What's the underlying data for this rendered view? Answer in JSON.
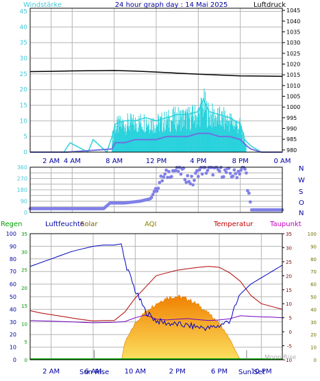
{
  "header": {
    "left_label": "Windstärke",
    "title": "24 hour graph day : 14 Mai 2025",
    "right_label": "Luftdruck"
  },
  "panel2": {
    "right_labels": [
      "N",
      "W",
      "S",
      "O",
      "N"
    ]
  },
  "panel3": {
    "legend": [
      "Regen",
      "Luftfeuchte",
      "Solar",
      "AQI",
      "Temperatur",
      "Taupunkt"
    ],
    "sun_rise": "Sun Rise",
    "sun_set": "Sun Set",
    "moon_rise": "Moon Rise"
  },
  "colors": {
    "background": "#ffffff",
    "plot_bg": "#ffffff",
    "grid": "#b4b4b4",
    "frame": "#000000",
    "label_blue": "#0000a0",
    "wind_label": "#44c8d8",
    "pressure": "#000000",
    "wind_gust": "#28d2dc",
    "wind_avg": "#6f70e0",
    "direction": "#8080e8",
    "rain": "#00a000",
    "humidity": "#0000c0",
    "solar": "#f5a623",
    "solar_label": "#7a6000",
    "aqi_label": "#8a8000",
    "temperature": "#b00000",
    "temp_label": "#c00000",
    "dewpoint": "#7000c0",
    "dewpoint_label": "#c000c0",
    "rain_axis": "#009000",
    "temp_axis": "#7a0000",
    "aqi_axis": "#707000"
  },
  "chart_data": [
    {
      "type": "line",
      "title": "24 hour graph day : 14 Mai 2025",
      "x_ticks": [
        "2 AM",
        "4 AM",
        "8 AM",
        "12 PM",
        "4 PM",
        "8 PM",
        "0 AM"
      ],
      "x_range_hours": [
        0,
        24
      ],
      "ylabel_left": "Windstärke",
      "ylim_left": [
        0,
        46
      ],
      "yticks_left": [
        0,
        5,
        10,
        15,
        20,
        25,
        30,
        35,
        40,
        45
      ],
      "ylabel_right": "Luftdruck",
      "ylim_right": [
        979,
        1046
      ],
      "yticks_right": [
        980,
        985,
        990,
        995,
        1000,
        1005,
        1010,
        1015,
        1020,
        1025,
        1030,
        1035,
        1040,
        1045
      ],
      "series": [
        {
          "name": "Luftdruck",
          "axis": "right",
          "x": [
            0,
            2,
            4,
            6,
            8,
            10,
            12,
            14,
            16,
            18,
            20,
            22,
            24
          ],
          "y": [
            1016.5,
            1016.6,
            1016.8,
            1016.9,
            1017.0,
            1016.7,
            1016.3,
            1015.8,
            1015.3,
            1014.9,
            1014.5,
            1014.4,
            1014.3
          ]
        },
        {
          "name": "Windböen",
          "axis": "left",
          "x": [
            0,
            3.2,
            3.8,
            5.5,
            6.0,
            7.3,
            7.8,
            8.1,
            9,
            10,
            11,
            12,
            13,
            14,
            15,
            16,
            16.5,
            17,
            18,
            19,
            20,
            20.4,
            21,
            22,
            24
          ],
          "y": [
            0,
            0,
            3,
            0,
            4,
            0,
            5,
            9,
            10,
            10,
            11,
            10,
            11,
            12,
            12,
            13,
            17,
            13,
            12,
            11,
            9,
            4,
            2,
            0,
            0
          ]
        },
        {
          "name": "Windstärke",
          "axis": "left",
          "x": [
            0,
            3.5,
            7.8,
            8.1,
            9,
            10,
            11,
            12,
            13,
            14,
            15,
            16,
            17,
            18,
            19,
            20,
            20.6,
            21,
            22,
            24
          ],
          "y": [
            0,
            0,
            1,
            3,
            3,
            4,
            4,
            4,
            5,
            5,
            5,
            6,
            6,
            5,
            5,
            4,
            2,
            1,
            0,
            0
          ]
        }
      ]
    },
    {
      "type": "scatter",
      "x_ticks": [
        "2 AM",
        "4 AM",
        "8 AM",
        "12 PM",
        "4 PM",
        "8 PM",
        "0 AM"
      ],
      "x_range_hours": [
        0,
        24
      ],
      "ylim": [
        0,
        360
      ],
      "yticks": [
        0,
        45,
        90,
        135,
        180,
        225,
        270,
        315,
        360
      ],
      "ytick_labels": [
        "0",
        "",
        "90",
        "",
        "180",
        "",
        "270",
        "",
        "360"
      ],
      "series": [
        {
          "name": "Windrichtung",
          "x": [
            0,
            1,
            2,
            3,
            4,
            5,
            6,
            7,
            7.6,
            8,
            9,
            9.5,
            10,
            10.5,
            11,
            11.5,
            12,
            12.5,
            13,
            13.5,
            14,
            14.5,
            15,
            15.5,
            16,
            16.5,
            17,
            17.5,
            18,
            18.5,
            19,
            19.5,
            20,
            20.5,
            21,
            22,
            23,
            24
          ],
          "y": [
            30,
            30,
            30,
            30,
            30,
            30,
            30,
            30,
            75,
            75,
            75,
            80,
            85,
            90,
            100,
            110,
            200,
            260,
            300,
            330,
            340,
            320,
            270,
            240,
            330,
            340,
            340,
            335,
            330,
            320,
            310,
            300,
            340,
            345,
            20,
            20,
            20,
            20
          ]
        }
      ]
    },
    {
      "type": "line",
      "x_ticks": [
        "2 AM",
        "6 AM",
        "10 AM",
        "2 PM",
        "6 PM",
        "10 PM"
      ],
      "x_range_hours": [
        0,
        24
      ],
      "ylabel_left": "Regen",
      "ylim_left": [
        0,
        100
      ],
      "yticks_left": [
        0,
        10,
        20,
        30,
        40,
        50,
        60,
        70,
        80,
        90,
        100
      ],
      "ylabel_right": "Temperatur",
      "ylim_right": [
        -10,
        35
      ],
      "yticks_right": [
        -10,
        -5,
        0,
        5,
        10,
        15,
        20,
        25,
        30,
        35
      ],
      "yticks_rain": [
        0,
        5,
        10,
        15,
        20,
        25,
        30,
        35
      ],
      "yticks_aqi": [
        0,
        10,
        20,
        30,
        40,
        50,
        60,
        70,
        80,
        90,
        100
      ],
      "series": [
        {
          "name": "Luftfeuchte",
          "x": [
            0,
            1,
            2,
            3,
            4,
            5,
            6,
            7,
            8,
            8.7,
            9,
            10,
            11,
            12,
            13,
            14,
            15,
            16,
            17,
            18,
            19,
            20,
            21,
            22,
            23,
            24
          ],
          "y": [
            74,
            77,
            80,
            83,
            86,
            88,
            90,
            91,
            91,
            92,
            78,
            55,
            38,
            31,
            29,
            28,
            27,
            26,
            25,
            27,
            31,
            52,
            60,
            65,
            70,
            75
          ]
        },
        {
          "name": "Temperatur",
          "x": [
            0,
            1,
            2,
            3,
            4,
            5,
            6,
            7,
            8,
            9,
            10,
            11,
            12,
            13,
            14,
            15,
            16,
            17,
            18,
            19,
            20,
            21,
            22,
            23,
            24
          ],
          "y": [
            7.5,
            6.7,
            6.1,
            5.5,
            4.9,
            4.3,
            3.9,
            4.0,
            4.0,
            7.0,
            12.0,
            16.0,
            20.0,
            21.0,
            22.0,
            22.5,
            23.0,
            23.3,
            23.0,
            21.0,
            18.0,
            13.0,
            10.0,
            9.0,
            8.0
          ]
        },
        {
          "name": "Taupunkt",
          "x": [
            0,
            2,
            4,
            6,
            8,
            9,
            10,
            11,
            12,
            13,
            14,
            15,
            16,
            17,
            18,
            19,
            20,
            21,
            22,
            23,
            24
          ],
          "y": [
            4.0,
            3.8,
            3.5,
            3.2,
            3.4,
            3.6,
            5.0,
            6.0,
            4.5,
            4.2,
            4.5,
            4.7,
            4.3,
            4.0,
            4.2,
            4.6,
            5.7,
            5.5,
            5.3,
            5.2,
            5.0
          ]
        },
        {
          "name": "Solar",
          "x": [
            8.7,
            9,
            10,
            11,
            12,
            13,
            14,
            15,
            16,
            17,
            18,
            19,
            19.5,
            20
          ],
          "y": [
            0,
            14,
            30,
            40,
            46,
            51,
            52,
            50,
            45,
            38,
            30,
            17,
            8,
            0
          ]
        },
        {
          "name": "Regen",
          "x": [
            0,
            24
          ],
          "y": [
            0,
            0
          ]
        }
      ]
    }
  ]
}
